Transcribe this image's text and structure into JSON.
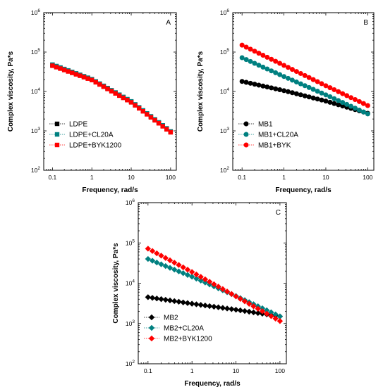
{
  "chart_data": [
    {
      "type": "scatter",
      "panel_label": "A",
      "xlabel": "Frequency, rad/s",
      "ylabel": "Complex viscosity, Pa*s",
      "xscale": "log",
      "yscale": "log",
      "xlim": [
        0.06,
        140
      ],
      "ylim": [
        100,
        1000000
      ],
      "x_ticks": [
        0.1,
        1,
        10,
        100
      ],
      "x_tick_labels": [
        "0.1",
        "1",
        "10",
        "100"
      ],
      "y_ticks": [
        100,
        1000,
        10000,
        100000,
        1000000
      ],
      "y_tick_labels": [
        "10^2",
        "10^3",
        "10^4",
        "10^5",
        "10^6"
      ],
      "legend_position": "bottom-left",
      "marker": "square",
      "series": [
        {
          "name": "LDPE",
          "color": "#000000",
          "x": [
            0.1,
            1,
            10,
            100
          ],
          "y": [
            47000,
            20000,
            5500,
            950
          ]
        },
        {
          "name": "LDPE+CL20A",
          "color": "#008080",
          "x": [
            0.1,
            1,
            10,
            100
          ],
          "y": [
            48000,
            20500,
            5600,
            970
          ]
        },
        {
          "name": "LDPE+BYK1200",
          "color": "#ff0000",
          "x": [
            0.1,
            1,
            10,
            100
          ],
          "y": [
            45000,
            19500,
            5300,
            920
          ]
        }
      ]
    },
    {
      "type": "scatter",
      "panel_label": "B",
      "xlabel": "Frequency, rad/s",
      "ylabel": "Complex viscosity, Pa*s",
      "xscale": "log",
      "yscale": "log",
      "xlim": [
        0.06,
        140
      ],
      "ylim": [
        100,
        1000000
      ],
      "x_ticks": [
        0.1,
        1,
        10,
        100
      ],
      "x_tick_labels": [
        "0.1",
        "1",
        "10",
        "100"
      ],
      "y_ticks": [
        100,
        1000,
        10000,
        100000,
        1000000
      ],
      "y_tick_labels": [
        "10^2",
        "10^3",
        "10^4",
        "10^5",
        "10^6"
      ],
      "legend_position": "bottom-left",
      "marker": "circle",
      "series": [
        {
          "name": "MB1",
          "color": "#000000",
          "x": [
            0.1,
            1,
            10,
            100
          ],
          "y": [
            18000,
            10500,
            5700,
            2800
          ]
        },
        {
          "name": "MB1+CL20A",
          "color": "#008080",
          "x": [
            0.1,
            1,
            10,
            100
          ],
          "y": [
            72000,
            24000,
            8200,
            2700
          ]
        },
        {
          "name": "MB1+BYK",
          "color": "#ff0000",
          "x": [
            0.1,
            1,
            10,
            100
          ],
          "y": [
            150000,
            46000,
            14000,
            4400
          ]
        }
      ]
    },
    {
      "type": "scatter",
      "panel_label": "C",
      "xlabel": "Frequency, rad/s",
      "ylabel": "Complex viscosity, Pa*s",
      "xscale": "log",
      "yscale": "log",
      "xlim": [
        0.06,
        140
      ],
      "ylim": [
        100,
        1000000
      ],
      "x_ticks": [
        0.1,
        1,
        10,
        100
      ],
      "x_tick_labels": [
        "0.1",
        "1",
        "10",
        "100"
      ],
      "y_ticks": [
        100,
        1000,
        10000,
        100000,
        1000000
      ],
      "y_tick_labels": [
        "10^2",
        "10^3",
        "10^4",
        "10^5",
        "10^6"
      ],
      "legend_position": "bottom-left",
      "marker": "diamond",
      "series": [
        {
          "name": "MB2",
          "color": "#000000",
          "x": [
            0.1,
            1,
            10,
            100
          ],
          "y": [
            4500,
            3100,
            2200,
            1500
          ]
        },
        {
          "name": "MB2+CL20A",
          "color": "#008080",
          "x": [
            0.1,
            1,
            10,
            100
          ],
          "y": [
            40000,
            14500,
            4800,
            1500
          ]
        },
        {
          "name": "MB2+BYK1200",
          "color": "#ff0000",
          "x": [
            0.1,
            1,
            10,
            100
          ],
          "y": [
            72000,
            19000,
            4700,
            1150
          ]
        }
      ]
    }
  ]
}
